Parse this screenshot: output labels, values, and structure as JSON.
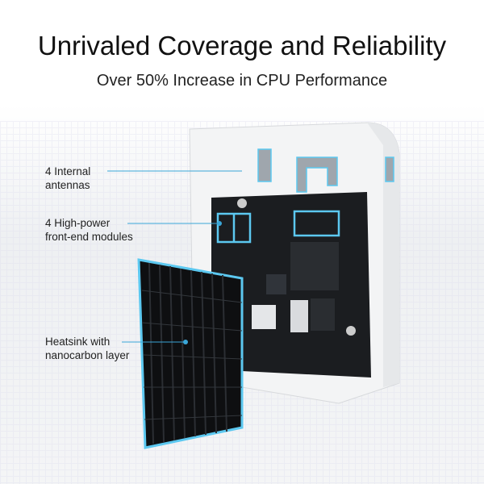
{
  "header": {
    "title": "Unrivaled Coverage and Reliability",
    "subtitle": "Over 50% Increase in CPU Performance"
  },
  "callouts": [
    {
      "line1": "4 Internal",
      "line2": "antennas"
    },
    {
      "line1": "4 High-power",
      "line2": "front-end modules"
    },
    {
      "line1": "Heatsink with",
      "line2": "nanocarbon layer"
    }
  ],
  "colors": {
    "accent": "#3aa6d8",
    "glow": "#5cc8f0",
    "board": "#1b1d20",
    "heatsink": "#0e0f11"
  }
}
